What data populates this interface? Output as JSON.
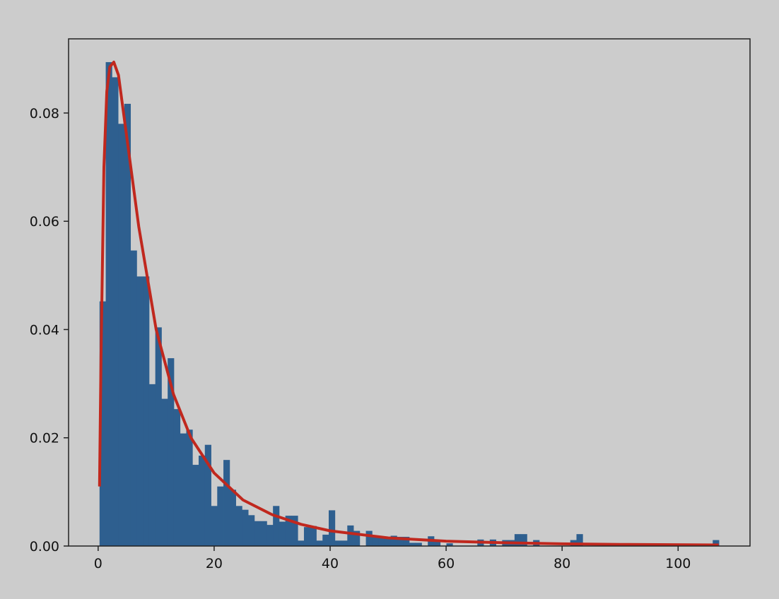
{
  "chart_data": {
    "type": "bar",
    "subtype": "histogram-with-fit-line",
    "title": "",
    "xlabel": "",
    "ylabel": "",
    "xlim": [
      -5.1,
      112.4
    ],
    "ylim": [
      0,
      0.0937
    ],
    "grid": false,
    "x_ticks": [
      "0",
      "20",
      "40",
      "60",
      "80",
      "100"
    ],
    "y_ticks": [
      "0.00",
      "0.02",
      "0.04",
      "0.06",
      "0.08"
    ],
    "x_tick_values": [
      0,
      20,
      40,
      60,
      80,
      100
    ],
    "y_tick_values": [
      0,
      0.02,
      0.04,
      0.06,
      0.08
    ],
    "histogram": {
      "bin_start": 0.24,
      "bin_width": 1.068,
      "color": "#2e5f8f",
      "values": [
        0.0452,
        0.0894,
        0.0866,
        0.078,
        0.0817,
        0.0546,
        0.0498,
        0.0498,
        0.0299,
        0.0404,
        0.0272,
        0.0347,
        0.0253,
        0.0208,
        0.0215,
        0.015,
        0.0167,
        0.0187,
        0.0074,
        0.011,
        0.0159,
        0.0104,
        0.0074,
        0.0067,
        0.0057,
        0.0046,
        0.0046,
        0.0039,
        0.0074,
        0.0045,
        0.0056,
        0.0056,
        0.001,
        0.0035,
        0.0037,
        0.001,
        0.0021,
        0.0066,
        0.001,
        0.001,
        0.0038,
        0.0028,
        0,
        0.0028,
        0.0017,
        0.0017,
        0.0017,
        0.0019,
        0.0017,
        0.0017,
        0.0006,
        0.0006,
        0,
        0.0018,
        0.0008,
        0,
        0.0005,
        0,
        0,
        0,
        0,
        0.0012,
        0,
        0.0012,
        0,
        0.0011,
        0.0011,
        0.0022,
        0.0022,
        0,
        0.0011,
        0,
        0,
        0,
        0,
        0,
        0.0011,
        0.0022,
        0,
        0,
        0,
        0,
        0,
        0,
        0,
        0,
        0,
        0,
        0,
        0,
        0,
        0,
        0,
        0,
        0,
        0,
        0,
        0,
        0,
        0.0011
      ]
    },
    "fit_line": {
      "color": "#c0281e",
      "x": [
        0.24,
        0.5,
        1,
        1.5,
        2,
        2.7,
        3.5,
        5,
        7,
        10,
        13,
        16,
        20,
        25,
        30,
        35,
        40,
        50,
        60,
        70,
        80,
        90,
        107
      ],
      "y": [
        0.011,
        0.035,
        0.07,
        0.084,
        0.0885,
        0.0894,
        0.087,
        0.075,
        0.059,
        0.04,
        0.028,
        0.02,
        0.0135,
        0.0085,
        0.0058,
        0.004,
        0.0028,
        0.0015,
        0.0009,
        0.0006,
        0.0004,
        0.0003,
        0.0002
      ]
    }
  }
}
